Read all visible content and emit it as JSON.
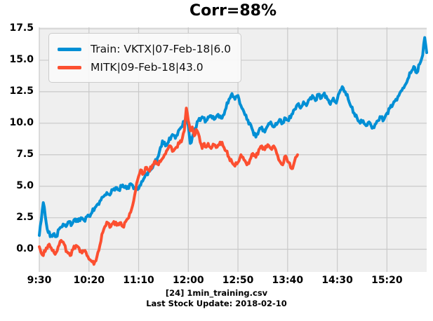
{
  "chart_data": {
    "type": "line",
    "title": "Corr=88%",
    "x_unit": "minutes since 09:30 (1-min bars)",
    "xlim": [
      0,
      390
    ],
    "ylim": [
      -1.8,
      17.61
    ],
    "grid": true,
    "legend_position": "upper left",
    "x_tick_minutes": [
      0,
      50,
      100,
      150,
      200,
      250,
      300,
      350
    ],
    "x_tick_labels": [
      "9:30",
      "10:20",
      "11:10",
      "12:00",
      "12:50",
      "13:40",
      "14:30",
      "15:20"
    ],
    "y_tick_values": [
      0,
      2.5,
      5,
      7.5,
      10,
      12.5,
      15,
      17.5
    ],
    "y_tick_labels": [
      "0.0",
      "2.5",
      "5.0",
      "7.5",
      "10.0",
      "12.5",
      "15.0",
      "17.5"
    ],
    "colors": {
      "axes_bg": "#efefef",
      "grid": "#c9c9c9",
      "figure_bg": "#ffffff",
      "train_blue": "#008fd5",
      "test_red": "#fc4f30"
    },
    "series": [
      {
        "name": "Train: VKTX|07-Feb-18|6.0",
        "color": "#008fd5",
        "x": [
          0,
          4,
          8,
          11,
          14,
          17,
          20,
          24,
          27,
          30,
          33,
          36,
          39,
          42,
          45,
          48,
          51,
          53,
          56,
          59,
          62,
          65,
          68,
          71,
          74,
          77,
          80,
          84,
          88,
          92,
          96,
          100,
          104,
          108,
          112,
          116,
          120,
          124,
          127,
          130,
          134,
          137,
          140,
          143,
          146,
          148,
          150,
          152,
          154,
          157,
          160,
          164,
          168,
          172,
          176,
          180,
          184,
          188,
          191,
          194,
          197,
          200,
          203,
          206,
          209,
          212,
          215,
          218,
          221,
          224,
          227,
          230,
          233,
          236,
          239,
          242,
          245,
          248,
          251,
          254,
          257,
          260,
          263,
          266,
          269,
          272,
          275,
          278,
          281,
          284,
          287,
          290,
          293,
          296,
          299,
          302,
          305,
          308,
          311,
          314,
          317,
          320,
          323,
          326,
          329,
          332,
          335,
          338,
          341,
          344,
          347,
          350,
          353,
          356,
          359,
          362,
          365,
          368,
          371,
          374,
          377,
          380,
          383,
          386,
          388,
          390
        ],
        "y": [
          1.1,
          3.7,
          1.6,
          1.0,
          1.2,
          1.0,
          1.6,
          2.0,
          1.8,
          2.2,
          2.0,
          2.4,
          2.2,
          2.5,
          2.3,
          2.6,
          2.6,
          2.9,
          3.3,
          3.6,
          3.9,
          4.2,
          4.5,
          4.3,
          4.7,
          4.9,
          4.7,
          5.1,
          4.8,
          5.2,
          4.9,
          4.8,
          5.4,
          6.0,
          6.3,
          6.8,
          7.4,
          8.6,
          8.2,
          8.5,
          9.1,
          8.8,
          9.4,
          9.7,
          10.1,
          10.4,
          9.8,
          8.4,
          8.9,
          9.6,
          10.2,
          10.5,
          10.2,
          10.6,
          10.3,
          10.7,
          10.4,
          11.2,
          11.9,
          12.35,
          11.9,
          12.2,
          11.4,
          10.9,
          10.3,
          10.0,
          9.4,
          8.9,
          9.4,
          9.7,
          9.3,
          9.8,
          10.1,
          9.7,
          9.9,
          10.3,
          10.0,
          10.4,
          10.2,
          10.7,
          11.1,
          11.5,
          11.2,
          11.7,
          11.4,
          11.9,
          12.2,
          11.8,
          12.3,
          12.0,
          12.4,
          11.9,
          11.5,
          12.0,
          11.6,
          12.4,
          12.9,
          12.5,
          11.9,
          11.3,
          10.8,
          10.4,
          10.0,
          10.2,
          9.8,
          10.1,
          9.6,
          9.9,
          10.2,
          10.5,
          10.3,
          10.8,
          11.2,
          11.5,
          11.9,
          12.2,
          12.6,
          13.0,
          13.5,
          14.0,
          14.5,
          14.0,
          14.7,
          15.4,
          16.8,
          15.6
        ]
      },
      {
        "name": "MITK|09-Feb-18|43.0",
        "color": "#fc4f30",
        "x": [
          0,
          2,
          4,
          7,
          10,
          13,
          16,
          19,
          22,
          25,
          28,
          31,
          34,
          37,
          40,
          43,
          46,
          49,
          52,
          55,
          58,
          61,
          63,
          66,
          69,
          72,
          75,
          78,
          81,
          84,
          87,
          90,
          93,
          96,
          99,
          102,
          105,
          108,
          111,
          114,
          117,
          120,
          123,
          126,
          129,
          132,
          135,
          138,
          141,
          144,
          146,
          148,
          150,
          152,
          154,
          156,
          158,
          160,
          162,
          164,
          166,
          168,
          170,
          173,
          176,
          179,
          182,
          185,
          188,
          191,
          194,
          197,
          200,
          203,
          206,
          209,
          212,
          215,
          218,
          221,
          224,
          227,
          230,
          233,
          236,
          239,
          242,
          245,
          248,
          251,
          254,
          256,
          258,
          260
        ],
        "y": [
          0.2,
          -0.3,
          -0.5,
          0.1,
          0.4,
          -0.1,
          -0.4,
          0.2,
          0.7,
          0.4,
          -0.2,
          -0.5,
          0.0,
          0.3,
          0.1,
          -0.3,
          -0.1,
          -0.6,
          -0.9,
          -1.2,
          -0.6,
          0.3,
          1.2,
          1.8,
          2.1,
          1.8,
          2.2,
          1.9,
          2.1,
          1.8,
          2.2,
          2.5,
          3.2,
          4.3,
          5.5,
          6.3,
          6.0,
          6.5,
          6.2,
          6.7,
          7.0,
          6.7,
          7.1,
          7.5,
          7.9,
          8.2,
          7.8,
          8.1,
          8.4,
          8.8,
          9.4,
          11.2,
          10.2,
          9.4,
          9.7,
          9.0,
          9.5,
          9.2,
          8.5,
          8.0,
          8.4,
          8.1,
          8.4,
          8.0,
          8.3,
          8.1,
          8.5,
          8.2,
          7.8,
          7.3,
          6.9,
          6.6,
          6.9,
          7.5,
          7.1,
          6.7,
          7.1,
          7.6,
          7.3,
          7.9,
          8.2,
          7.9,
          8.3,
          8.0,
          8.2,
          7.6,
          7.0,
          6.7,
          7.4,
          6.9,
          6.4,
          6.7,
          7.3,
          7.5
        ]
      }
    ],
    "annotations": [
      "[24] 1min_training.csv",
      "Last Stock Update: 2018-02-10"
    ]
  }
}
